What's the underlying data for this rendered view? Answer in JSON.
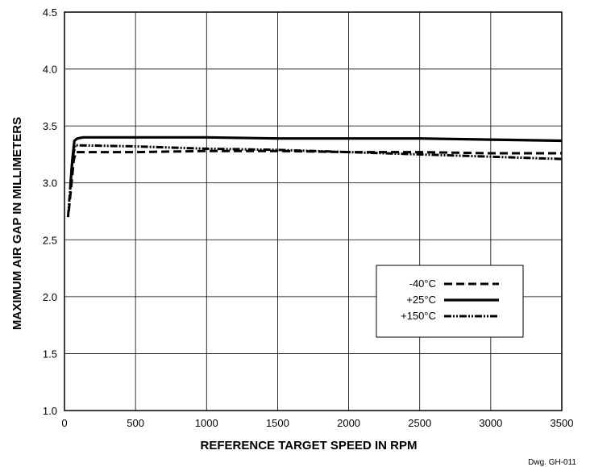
{
  "chart_data": {
    "type": "line",
    "title": "",
    "xlabel": "REFERENCE TARGET SPEED IN RPM",
    "ylabel": "MAXIMUM AIR GAP IN MILLIMETERS",
    "xlim": [
      0,
      3500
    ],
    "ylim": [
      1.0,
      4.5
    ],
    "x_ticks": [
      "0",
      "500",
      "1000",
      "1500",
      "2000",
      "2500",
      "3000",
      "3500"
    ],
    "y_ticks": [
      "1.0",
      "1.5",
      "2.0",
      "2.5",
      "3.0",
      "3.5",
      "4.0",
      "4.5"
    ],
    "grid": true,
    "legend_position": "lower-right",
    "series": [
      {
        "name": "-40°C",
        "style": "dashed",
        "x": [
          30,
          50,
          65,
          80,
          500,
          1000,
          1500,
          2000,
          2500,
          3000,
          3500
        ],
        "y": [
          2.75,
          3.0,
          3.2,
          3.27,
          3.27,
          3.28,
          3.28,
          3.27,
          3.27,
          3.26,
          3.26
        ]
      },
      {
        "name": "+25°C",
        "style": "solid",
        "x": [
          40,
          55,
          70,
          90,
          130,
          500,
          1000,
          1500,
          2000,
          2500,
          3000,
          3500
        ],
        "y": [
          2.95,
          3.2,
          3.37,
          3.39,
          3.4,
          3.4,
          3.4,
          3.39,
          3.39,
          3.39,
          3.38,
          3.37
        ]
      },
      {
        "name": "+150°C",
        "style": "dash-dot-dot",
        "x": [
          25,
          40,
          55,
          75,
          500,
          1000,
          1500,
          2000,
          2500,
          3000,
          3500
        ],
        "y": [
          2.7,
          2.95,
          3.2,
          3.33,
          3.32,
          3.3,
          3.29,
          3.27,
          3.25,
          3.23,
          3.21
        ]
      }
    ]
  },
  "footer": {
    "drawing_number": "Dwg. GH-011"
  }
}
